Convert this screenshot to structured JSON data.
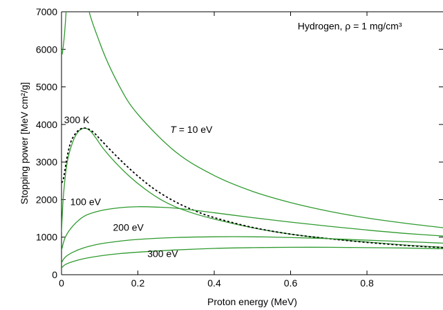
{
  "chart_data": {
    "type": "line",
    "title": "",
    "xlabel": "Proton energy (MeV)",
    "ylabel": "Stopping power  [MeV cm²/g]",
    "xlim": [
      0,
      1.0
    ],
    "ylim": [
      0,
      7000
    ],
    "xticks": [
      0,
      0.2,
      0.4,
      0.6,
      0.8
    ],
    "xtick_labels": [
      "0",
      "0.2",
      "0.4",
      "0.6",
      "0.8"
    ],
    "yticks": [
      0,
      1000,
      2000,
      3000,
      4000,
      5000,
      6000,
      7000
    ],
    "ytick_labels": [
      "0",
      "1000",
      "2000",
      "3000",
      "4000",
      "5000",
      "6000",
      "7000"
    ],
    "grid": false,
    "annotations": [
      {
        "id": "box",
        "text": "Hydrogen, ρ = 1 mg/cm³",
        "x": 0.755,
        "y": 6530
      },
      {
        "id": "t10",
        "text_italic": "T",
        "text": " = 10 eV",
        "x": 0.34,
        "y": 3780
      },
      {
        "id": "k300",
        "text": "300 K",
        "x": 0.04,
        "y": 4030
      },
      {
        "id": "ev100",
        "text": "100 eV",
        "x": 0.063,
        "y": 1850
      },
      {
        "id": "ev200",
        "text": "200 eV",
        "x": 0.175,
        "y": 1170
      },
      {
        "id": "ev300",
        "text": "300 eV",
        "x": 0.265,
        "y": 470
      }
    ],
    "series": [
      {
        "name": "T = 10 eV",
        "style": "solid",
        "color": "#2e9a2e",
        "x": [
          0.0,
          0.003,
          0.012,
          0.03,
          0.06,
          0.1,
          0.15,
          0.2,
          0.3,
          0.4,
          0.5,
          0.6,
          0.7,
          0.8,
          0.9,
          1.0
        ],
        "y": [
          5950,
          5950,
          7000,
          10500,
          7600,
          6180,
          5050,
          4270,
          3260,
          2640,
          2220,
          1920,
          1690,
          1510,
          1370,
          1250
        ]
      },
      {
        "name": "300 K",
        "style": "solid",
        "color": "#2e9a2e",
        "x": [
          0.0,
          0.005,
          0.015,
          0.03,
          0.045,
          0.06,
          0.075,
          0.09,
          0.11,
          0.14,
          0.18,
          0.22,
          0.26,
          0.3,
          0.35,
          0.4,
          0.5,
          0.6,
          0.7,
          0.8,
          0.9,
          1.0
        ],
        "y": [
          1150,
          2100,
          3000,
          3550,
          3820,
          3900,
          3830,
          3640,
          3350,
          3000,
          2600,
          2270,
          2000,
          1800,
          1620,
          1480,
          1250,
          1080,
          960,
          870,
          790,
          730
        ]
      },
      {
        "name": "",
        "style": "dashed",
        "color": "#000000",
        "x": [
          0.0,
          0.005,
          0.015,
          0.025,
          0.04,
          0.055,
          0.07,
          0.085,
          0.1,
          0.13,
          0.17,
          0.21,
          0.25,
          0.3,
          0.35,
          0.4,
          0.5,
          0.6,
          0.7,
          0.8,
          0.9,
          1.0
        ],
        "y": [
          2450,
          2550,
          3150,
          3550,
          3800,
          3900,
          3880,
          3780,
          3620,
          3300,
          2900,
          2540,
          2230,
          1930,
          1700,
          1520,
          1260,
          1080,
          960,
          860,
          780,
          720
        ]
      },
      {
        "name": "100 eV",
        "style": "solid",
        "color": "#2e9a2e",
        "x": [
          0.0,
          0.01,
          0.03,
          0.06,
          0.1,
          0.15,
          0.2,
          0.25,
          0.3,
          0.4,
          0.5,
          0.6,
          0.7,
          0.8,
          0.9,
          1.0
        ],
        "y": [
          650,
          1000,
          1300,
          1560,
          1700,
          1780,
          1810,
          1800,
          1770,
          1650,
          1520,
          1400,
          1290,
          1190,
          1100,
          1030
        ]
      },
      {
        "name": "200 eV",
        "style": "solid",
        "color": "#2e9a2e",
        "x": [
          0.0,
          0.01,
          0.03,
          0.06,
          0.1,
          0.15,
          0.2,
          0.3,
          0.4,
          0.5,
          0.6,
          0.7,
          0.8,
          0.9,
          1.0
        ],
        "y": [
          320,
          470,
          600,
          720,
          820,
          890,
          940,
          990,
          1010,
          1010,
          990,
          960,
          920,
          880,
          840
        ]
      },
      {
        "name": "300 eV",
        "style": "solid",
        "color": "#2e9a2e",
        "x": [
          0.0,
          0.01,
          0.03,
          0.06,
          0.1,
          0.15,
          0.2,
          0.3,
          0.4,
          0.5,
          0.6,
          0.7,
          0.8,
          0.9,
          1.0
        ],
        "y": [
          180,
          270,
          350,
          430,
          500,
          560,
          600,
          660,
          700,
          720,
          730,
          730,
          720,
          710,
          690
        ]
      }
    ]
  }
}
